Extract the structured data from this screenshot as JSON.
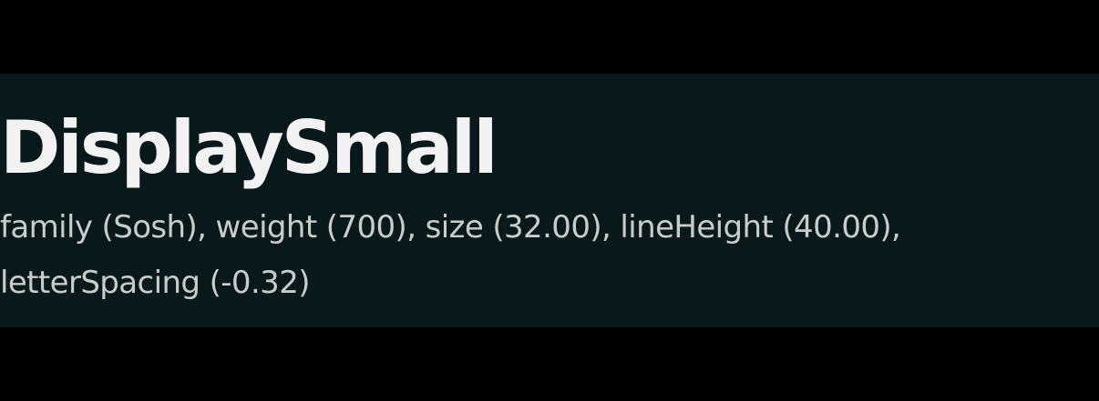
{
  "style_card": {
    "title": "DisplaySmall",
    "description_line_1": "family (Sosh), weight (700), size (32.00), lineHeight (40.00),",
    "description_line_2": "letterSpacing (-0.32)"
  },
  "colors": {
    "page_background": "#000000",
    "panel_background": "#09181b",
    "title_text": "#f2f2f2",
    "description_text": "#c9cccd"
  }
}
